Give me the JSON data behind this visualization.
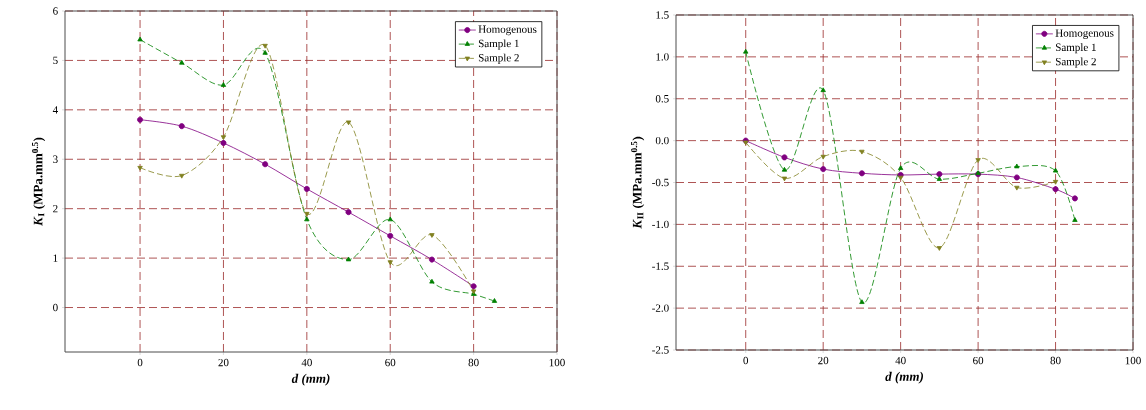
{
  "chart_data": [
    {
      "type": "line",
      "xlabel": "d (mm)",
      "ylabel": "*K*$_{I}$ (MPa.mm$^{0.5}$)",
      "xlim": [
        -18,
        100
      ],
      "ylim": [
        -0.9,
        6
      ],
      "xticks": [
        0,
        20,
        40,
        60,
        80,
        100
      ],
      "yticks": [
        0,
        1,
        2,
        3,
        4,
        5,
        6
      ],
      "grid": true,
      "legend": "top right",
      "series": [
        {
          "name": "Homogenous",
          "color": "#800080",
          "marker": "circle",
          "line_style": "solid",
          "x": [
            0,
            10,
            20,
            30,
            40,
            50,
            60,
            70,
            80
          ],
          "values": [
            3.8,
            3.67,
            3.33,
            2.9,
            2.4,
            1.93,
            1.45,
            0.97,
            0.43
          ]
        },
        {
          "name": "Sample 1",
          "color": "#008000",
          "marker": "triangle",
          "line_style": "dashed",
          "x": [
            0,
            10,
            20,
            30,
            40,
            50,
            60,
            70,
            80,
            85
          ],
          "values": [
            5.42,
            4.95,
            4.5,
            5.15,
            1.78,
            0.97,
            1.78,
            0.52,
            0.27,
            0.13
          ]
        },
        {
          "name": "Sample 2",
          "color": "#808020",
          "marker": "triangle-down",
          "line_style": "dashed",
          "x": [
            0,
            10,
            20,
            30,
            40,
            50,
            60,
            70,
            80
          ],
          "values": [
            2.83,
            2.67,
            3.45,
            5.3,
            1.9,
            3.75,
            0.92,
            1.47,
            0.33
          ]
        }
      ]
    },
    {
      "type": "line",
      "xlabel": "d (mm)",
      "ylabel": "*K*$_{II}$ (MPa.mm$^{0.5}$)",
      "xlim": [
        -18,
        100
      ],
      "ylim": [
        -2.5,
        1.5
      ],
      "xticks": [
        0,
        20,
        40,
        60,
        80,
        100
      ],
      "yticks": [
        {
          "value": -2.5,
          "label": "-2.5"
        },
        {
          "value": -2,
          "label": "-2.0"
        },
        {
          "value": -1.5,
          "label": "-1.5"
        },
        {
          "value": -1,
          "label": "-1.0"
        },
        {
          "value": -0.5,
          "label": "-0.5"
        },
        {
          "value": 0,
          "label": "0.0"
        },
        {
          "value": 0.5,
          "label": "0.5"
        },
        {
          "value": 1,
          "label": "1.0"
        },
        {
          "value": 1.5,
          "label": "1.5"
        }
      ],
      "grid": true,
      "legend": "top right",
      "series": [
        {
          "name": "Homogenous",
          "color": "#800080",
          "marker": "circle",
          "line_style": "solid",
          "x": [
            0,
            10,
            20,
            30,
            40,
            50,
            60,
            70,
            80,
            85
          ],
          "values": [
            0,
            -0.2,
            -0.34,
            -0.39,
            -0.41,
            -0.4,
            -0.4,
            -0.44,
            -0.58,
            -0.69
          ]
        },
        {
          "name": "Sample 1",
          "color": "#008000",
          "marker": "triangle",
          "line_style": "dashed",
          "x": [
            0,
            10,
            20,
            30,
            40,
            50,
            60,
            70,
            80,
            85
          ],
          "values": [
            1.06,
            -0.35,
            0.6,
            -1.93,
            -0.33,
            -0.46,
            -0.39,
            -0.31,
            -0.36,
            -0.95
          ]
        },
        {
          "name": "Sample 2",
          "color": "#808020",
          "marker": "triangle-down",
          "line_style": "dashed",
          "x": [
            0,
            10,
            20,
            30,
            40,
            50,
            60,
            70,
            80
          ],
          "values": [
            -0.02,
            -0.45,
            -0.19,
            -0.13,
            -0.44,
            -1.28,
            -0.23,
            -0.56,
            -0.49
          ]
        }
      ]
    }
  ]
}
